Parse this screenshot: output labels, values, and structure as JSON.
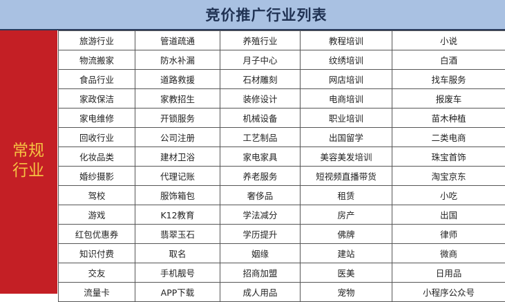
{
  "header": {
    "title": "竞价推广行业列表"
  },
  "side_label": {
    "line1": "常规",
    "line2": "行业"
  },
  "colors": {
    "header_bg": "#a9c1e2",
    "side_bg": "#c41f25",
    "side_text": "#f5c242"
  },
  "rows": [
    [
      "旅游行业",
      "管道疏通",
      "养殖行业",
      "教程培训",
      "小说"
    ],
    [
      "物流搬家",
      "防水补漏",
      "月子中心",
      "纹绣培训",
      "白酒"
    ],
    [
      "食品行业",
      "道路救援",
      "石材雕刻",
      "网店培训",
      "找车服务"
    ],
    [
      "家政保洁",
      "家教招生",
      "装修设计",
      "电商培训",
      "报废车"
    ],
    [
      "家电维修",
      "开锁服务",
      "机械设备",
      "职业培训",
      "苗木种植"
    ],
    [
      "回收行业",
      "公司注册",
      "工艺制品",
      "出国留学",
      "二类电商"
    ],
    [
      "化妆品类",
      "建材卫浴",
      "家电家具",
      "美容美发培训",
      "珠宝首饰"
    ],
    [
      "婚纱摄影",
      "代理记账",
      "养老服务",
      "短视频直播带货",
      "淘宝京东"
    ],
    [
      "驾校",
      "服饰箱包",
      "奢侈品",
      "租赁",
      "小吃"
    ],
    [
      "游戏",
      "K12教育",
      "学法减分",
      "房产",
      "出国"
    ],
    [
      "红包优惠券",
      "翡翠玉石",
      "学历提升",
      "佛牌",
      "律师"
    ],
    [
      "知识付费",
      "取名",
      "姻缘",
      "建站",
      "微商"
    ],
    [
      "交友",
      "手机靓号",
      "招商加盟",
      "医美",
      "日用品"
    ],
    [
      "流量卡",
      "APP下载",
      "成人用品",
      "宠物",
      "小程序公众号"
    ]
  ]
}
